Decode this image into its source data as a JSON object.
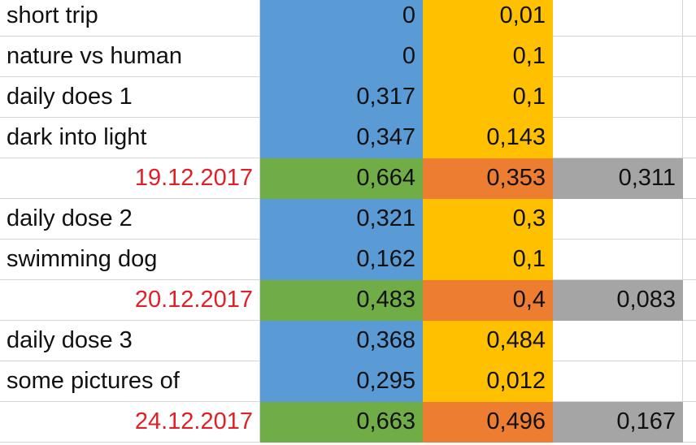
{
  "table": {
    "rows": [
      [
        "short trip",
        "0",
        "0,01"
      ],
      [
        "nature vs human",
        "0",
        "0,1"
      ],
      [
        "daily does 1",
        "0,317",
        "0,1"
      ],
      [
        "dark into light",
        "0,347",
        "0,143"
      ],
      [
        "19.12.2017",
        "0,664",
        "0,353",
        "0,311"
      ],
      [
        "daily dose 2",
        "0,321",
        "0,3"
      ],
      [
        "swimming dog",
        "0,162",
        "0,1"
      ],
      [
        "20.12.2017",
        "0,483",
        "0,4",
        "0,083"
      ],
      [
        "daily dose 3",
        "0,368",
        "0,484"
      ],
      [
        "some pictures of",
        "0,295",
        "0,012"
      ],
      [
        "24.12.2017",
        "0,663",
        "0,496",
        "0,167"
      ]
    ]
  }
}
